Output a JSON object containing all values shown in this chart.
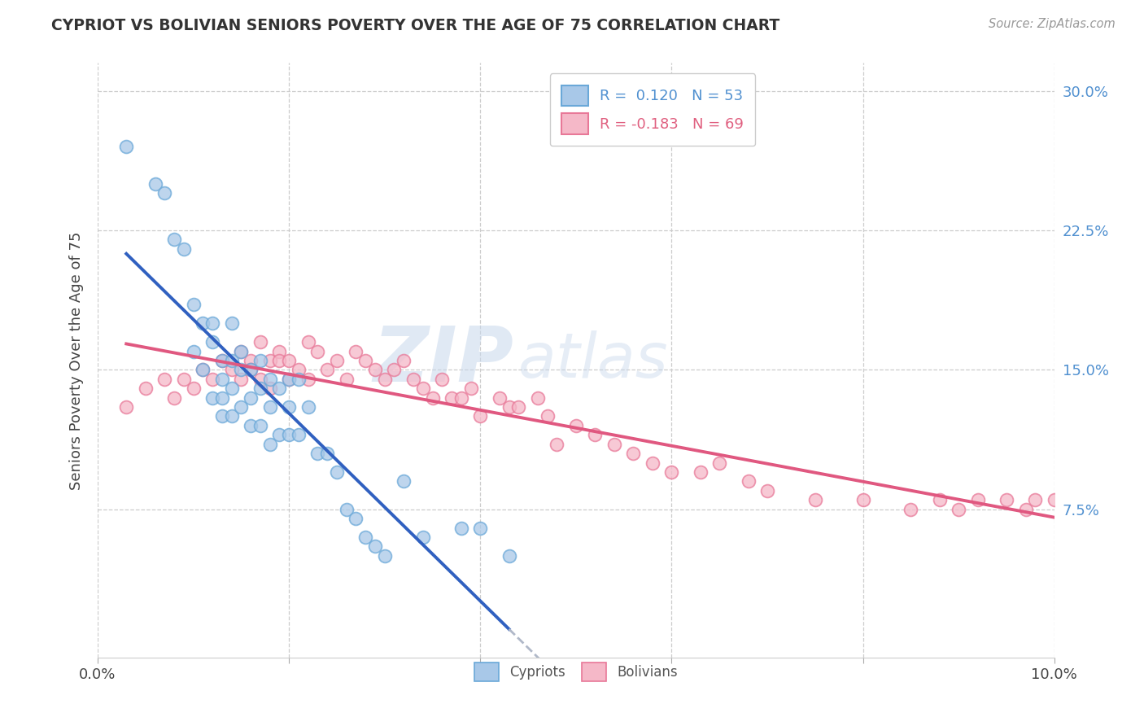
{
  "title": "CYPRIOT VS BOLIVIAN SENIORS POVERTY OVER THE AGE OF 75 CORRELATION CHART",
  "source": "Source: ZipAtlas.com",
  "ylabel": "Seniors Poverty Over the Age of 75",
  "xlim": [
    0.0,
    0.1
  ],
  "ylim": [
    -0.005,
    0.315
  ],
  "yticks_right": [
    0.075,
    0.15,
    0.225,
    0.3
  ],
  "ytick_labels_right": [
    "7.5%",
    "15.0%",
    "22.5%",
    "30.0%"
  ],
  "grid_color": "#cccccc",
  "background_color": "#ffffff",
  "cypriot_color": "#a8c8e8",
  "bolivian_color": "#f5b8c8",
  "cypriot_edge_color": "#6aa8d8",
  "bolivian_edge_color": "#e87898",
  "trend_blue": "#3060c0",
  "trend_pink": "#e05880",
  "trend_dash_color": "#b0b8c8",
  "R_cypriot": 0.12,
  "N_cypriot": 53,
  "R_bolivian": -0.183,
  "N_bolivian": 69,
  "watermark_zip": "ZIP",
  "watermark_atlas": "atlas",
  "cypriot_x": [
    0.003,
    0.006,
    0.007,
    0.008,
    0.009,
    0.01,
    0.01,
    0.011,
    0.011,
    0.012,
    0.012,
    0.012,
    0.013,
    0.013,
    0.013,
    0.013,
    0.014,
    0.014,
    0.014,
    0.014,
    0.015,
    0.015,
    0.015,
    0.016,
    0.016,
    0.016,
    0.017,
    0.017,
    0.017,
    0.018,
    0.018,
    0.018,
    0.019,
    0.019,
    0.02,
    0.02,
    0.02,
    0.021,
    0.021,
    0.022,
    0.023,
    0.024,
    0.025,
    0.026,
    0.027,
    0.028,
    0.029,
    0.03,
    0.032,
    0.034,
    0.038,
    0.04,
    0.043
  ],
  "cypriot_y": [
    0.27,
    0.25,
    0.245,
    0.22,
    0.215,
    0.185,
    0.16,
    0.175,
    0.15,
    0.175,
    0.165,
    0.135,
    0.155,
    0.145,
    0.135,
    0.125,
    0.175,
    0.155,
    0.14,
    0.125,
    0.16,
    0.15,
    0.13,
    0.15,
    0.135,
    0.12,
    0.155,
    0.14,
    0.12,
    0.145,
    0.13,
    0.11,
    0.14,
    0.115,
    0.145,
    0.13,
    0.115,
    0.145,
    0.115,
    0.13,
    0.105,
    0.105,
    0.095,
    0.075,
    0.07,
    0.06,
    0.055,
    0.05,
    0.09,
    0.06,
    0.065,
    0.065,
    0.05
  ],
  "bolivian_x": [
    0.003,
    0.005,
    0.007,
    0.008,
    0.009,
    0.01,
    0.011,
    0.012,
    0.013,
    0.014,
    0.015,
    0.015,
    0.016,
    0.016,
    0.017,
    0.017,
    0.018,
    0.018,
    0.019,
    0.019,
    0.02,
    0.02,
    0.021,
    0.022,
    0.022,
    0.023,
    0.024,
    0.025,
    0.026,
    0.027,
    0.028,
    0.029,
    0.03,
    0.031,
    0.032,
    0.033,
    0.034,
    0.035,
    0.036,
    0.037,
    0.038,
    0.039,
    0.04,
    0.042,
    0.043,
    0.044,
    0.046,
    0.047,
    0.048,
    0.05,
    0.052,
    0.054,
    0.056,
    0.058,
    0.06,
    0.063,
    0.065,
    0.068,
    0.07,
    0.075,
    0.08,
    0.085,
    0.088,
    0.09,
    0.092,
    0.095,
    0.097,
    0.098,
    0.1
  ],
  "bolivian_y": [
    0.13,
    0.14,
    0.145,
    0.135,
    0.145,
    0.14,
    0.15,
    0.145,
    0.155,
    0.15,
    0.16,
    0.145,
    0.155,
    0.15,
    0.165,
    0.145,
    0.155,
    0.14,
    0.16,
    0.155,
    0.155,
    0.145,
    0.15,
    0.165,
    0.145,
    0.16,
    0.15,
    0.155,
    0.145,
    0.16,
    0.155,
    0.15,
    0.145,
    0.15,
    0.155,
    0.145,
    0.14,
    0.135,
    0.145,
    0.135,
    0.135,
    0.14,
    0.125,
    0.135,
    0.13,
    0.13,
    0.135,
    0.125,
    0.11,
    0.12,
    0.115,
    0.11,
    0.105,
    0.1,
    0.095,
    0.095,
    0.1,
    0.09,
    0.085,
    0.08,
    0.08,
    0.075,
    0.08,
    0.075,
    0.08,
    0.08,
    0.075,
    0.08,
    0.08
  ]
}
